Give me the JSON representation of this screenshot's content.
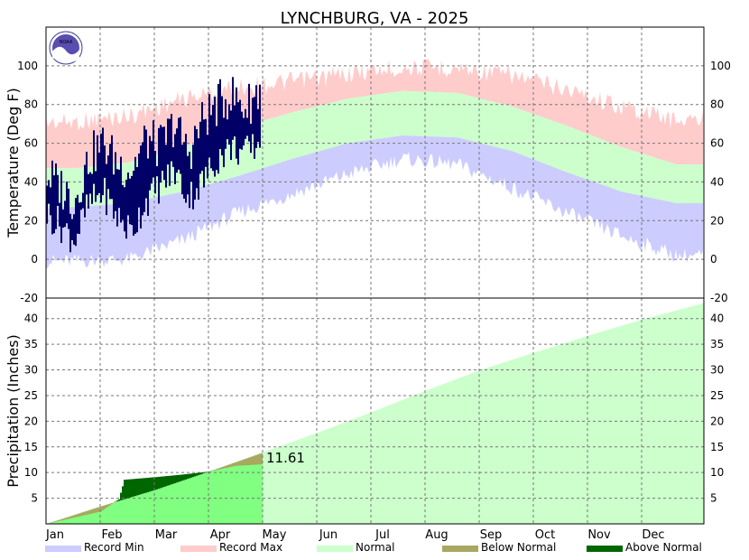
{
  "chart_data": [
    {
      "type": "area",
      "title": "LYNCHBURG, VA - 2025",
      "ylabel": "Temperature (Deg F)",
      "ylim": [
        -20,
        120
      ],
      "yticks": [
        -20,
        0,
        20,
        40,
        60,
        80,
        100
      ],
      "grid": true,
      "months": [
        "Jan",
        "Feb",
        "Mar",
        "Apr",
        "May",
        "Jun",
        "Jul",
        "Aug",
        "Sep",
        "Oct",
        "Nov",
        "Dec"
      ],
      "normal_high": [
        47,
        50,
        58,
        68,
        76,
        83,
        87,
        86,
        79,
        69,
        58,
        49
      ],
      "normal_low": [
        27,
        29,
        35,
        43,
        52,
        60,
        64,
        63,
        56,
        45,
        35,
        29
      ],
      "record_high": [
        76,
        79,
        88,
        94,
        97,
        101,
        104,
        104,
        100,
        93,
        84,
        77
      ],
      "record_low": [
        -5,
        -4,
        6,
        20,
        30,
        40,
        48,
        45,
        33,
        20,
        8,
        -2
      ],
      "observed_high": [
        44,
        38,
        30,
        52,
        60,
        50,
        46,
        62,
        58,
        70,
        55,
        72,
        80,
        85,
        78,
        88
      ],
      "observed_low": [
        24,
        18,
        10,
        28,
        35,
        22,
        14,
        30,
        38,
        46,
        32,
        40,
        52,
        58,
        55,
        60
      ]
    },
    {
      "type": "area",
      "ylabel": "Precipitation (Inches)",
      "ylim": [
        0,
        44
      ],
      "yticks": [
        5,
        10,
        15,
        20,
        25,
        30,
        35,
        40
      ],
      "grid": true,
      "months": [
        "Jan",
        "Feb",
        "Mar",
        "Apr",
        "May",
        "Jun",
        "Jul",
        "Aug",
        "Sep",
        "Oct",
        "Nov",
        "Dec"
      ],
      "normal_cumulative": [
        0,
        3.4,
        6.6,
        10.2,
        13.9,
        17.7,
        21.7,
        25.9,
        29.9,
        33.3,
        36.6,
        39.8,
        43.0
      ],
      "observed_cumulative_dates": [
        "Jan 1",
        "Jan 15",
        "Feb 1",
        "Feb 15",
        "Feb 17",
        "Mar 1",
        "Mar 15",
        "Apr 1",
        "Apr 15",
        "Apr 28"
      ],
      "observed_cumulative": [
        0,
        1.2,
        2.4,
        4.8,
        8.6,
        9.1,
        9.6,
        10.2,
        11.3,
        11.61
      ],
      "ytd_label": "11.61",
      "legend": [
        {
          "name": "Record Min",
          "color": "#ccccff"
        },
        {
          "name": "Record Max",
          "color": "#ffcccc"
        },
        {
          "name": "Normal",
          "color": "#ccffcc"
        },
        {
          "name": "Below Normal",
          "color": "#a8a860"
        },
        {
          "name": "Above Normal",
          "color": "#006600"
        }
      ]
    }
  ],
  "colors": {
    "record_max": "#ffcccc",
    "record_min": "#ccccff",
    "normal": "#ccffcc",
    "observed_temp": "#000066",
    "precip_observed": "#80ff80",
    "below_normal": "#a8a860",
    "above_normal": "#006600"
  },
  "logo_text": "NOAA"
}
